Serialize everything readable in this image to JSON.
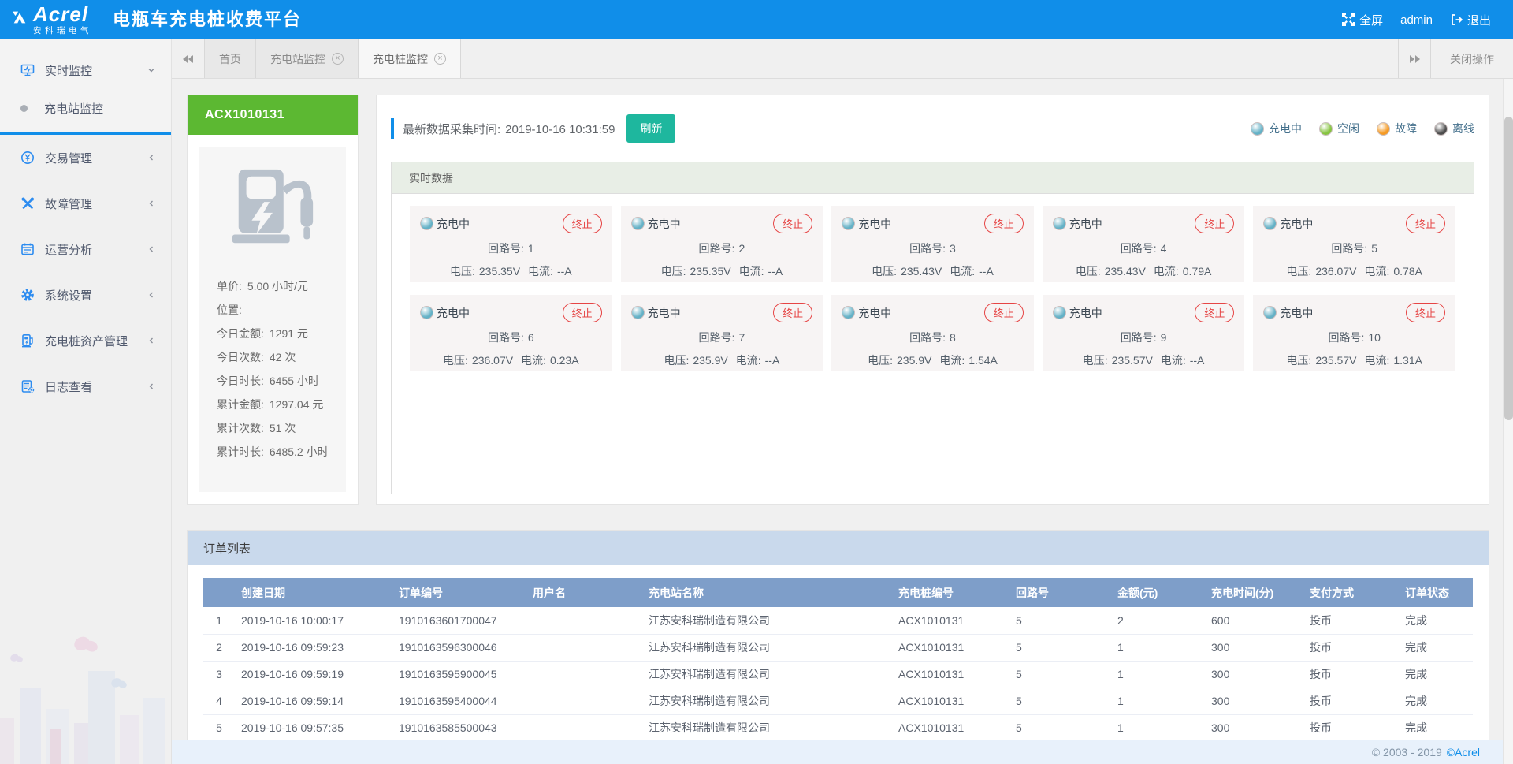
{
  "colors": {
    "header_bg": "#108ee9",
    "accent_blue": "#108ee9",
    "device_header_green": "#5cb832",
    "refresh_teal": "#1eb79e",
    "terminate_red": "#e64545",
    "charging": "#64b1c6",
    "idle": "#86c440",
    "fault": "#f59a23",
    "offline": "#4d4d4d",
    "table_header_blue": "#7e9ec9",
    "orders_bar_blue": "#c9d9ec"
  },
  "header": {
    "logo_text": "Acrel",
    "logo_sub": "安科瑞电气",
    "app_title": "电瓶车充电桩收费平台",
    "fullscreen_label": "全屏",
    "username": "admin",
    "logout_label": "退出"
  },
  "tabs": {
    "items": [
      {
        "label": "首页"
      },
      {
        "label": "充电站监控"
      },
      {
        "label": "充电桩监控"
      }
    ],
    "close_ops_label": "关闭操作"
  },
  "sidebar": {
    "items": [
      {
        "label": "实时监控",
        "children": [
          {
            "label": "充电站监控"
          }
        ]
      },
      {
        "label": "交易管理"
      },
      {
        "label": "故障管理"
      },
      {
        "label": "运营分析"
      },
      {
        "label": "系统设置"
      },
      {
        "label": "充电桩资产管理"
      },
      {
        "label": "日志查看"
      }
    ]
  },
  "device": {
    "id": "ACX1010131",
    "stats": [
      {
        "label": "单价:",
        "value": "5.00 小时/元"
      },
      {
        "label": "位置:",
        "value": ""
      },
      {
        "label": "今日金额:",
        "value": "1291 元"
      },
      {
        "label": "今日次数:",
        "value": "42 次"
      },
      {
        "label": "今日时长:",
        "value": "6455 小时"
      },
      {
        "label": "累计金额:",
        "value": "1297.04 元"
      },
      {
        "label": "累计次数:",
        "value": "51 次"
      },
      {
        "label": "累计时长:",
        "value": "6485.2 小时"
      }
    ]
  },
  "monitor": {
    "collect_time_label": "最新数据采集时间:",
    "collect_time": "2019-10-16 10:31:59",
    "refresh_label": "刷新",
    "section_title": "实时数据",
    "status_label": "充电中",
    "terminate_label": "终止",
    "circuit_label": "回路号:",
    "voltage_label": "电压:",
    "current_label": "电流:",
    "legend": [
      {
        "label": "充电中",
        "color": "#64b1c6"
      },
      {
        "label": "空闲",
        "color": "#86c440"
      },
      {
        "label": "故障",
        "color": "#f59a23"
      },
      {
        "label": "离线",
        "color": "#4d4d4d"
      }
    ],
    "channels": [
      {
        "circuit": "1",
        "voltage": "235.35V",
        "current": "--A"
      },
      {
        "circuit": "2",
        "voltage": "235.35V",
        "current": "--A"
      },
      {
        "circuit": "3",
        "voltage": "235.43V",
        "current": "--A"
      },
      {
        "circuit": "4",
        "voltage": "235.43V",
        "current": "0.79A"
      },
      {
        "circuit": "5",
        "voltage": "236.07V",
        "current": "0.78A"
      },
      {
        "circuit": "6",
        "voltage": "236.07V",
        "current": "0.23A"
      },
      {
        "circuit": "7",
        "voltage": "235.9V",
        "current": "--A"
      },
      {
        "circuit": "8",
        "voltage": "235.9V",
        "current": "1.54A"
      },
      {
        "circuit": "9",
        "voltage": "235.57V",
        "current": "--A"
      },
      {
        "circuit": "10",
        "voltage": "235.57V",
        "current": "1.31A"
      }
    ]
  },
  "orders": {
    "section_title": "订单列表",
    "columns": [
      "创建日期",
      "订单编号",
      "用户名",
      "充电站名称",
      "充电桩编号",
      "回路号",
      "金额(元)",
      "充电时间(分)",
      "支付方式",
      "订单状态"
    ],
    "rows": [
      [
        "1",
        "2019-10-16 10:00:17",
        "1910163601700047",
        "",
        "江苏安科瑞制造有限公司",
        "ACX1010131",
        "5",
        "2",
        "600",
        "投币",
        "完成"
      ],
      [
        "2",
        "2019-10-16 09:59:23",
        "1910163596300046",
        "",
        "江苏安科瑞制造有限公司",
        "ACX1010131",
        "5",
        "1",
        "300",
        "投币",
        "完成"
      ],
      [
        "3",
        "2019-10-16 09:59:19",
        "1910163595900045",
        "",
        "江苏安科瑞制造有限公司",
        "ACX1010131",
        "5",
        "1",
        "300",
        "投币",
        "完成"
      ],
      [
        "4",
        "2019-10-16 09:59:14",
        "1910163595400044",
        "",
        "江苏安科瑞制造有限公司",
        "ACX1010131",
        "5",
        "1",
        "300",
        "投币",
        "完成"
      ],
      [
        "5",
        "2019-10-16 09:57:35",
        "1910163585500043",
        "",
        "江苏安科瑞制造有限公司",
        "ACX1010131",
        "5",
        "1",
        "300",
        "投币",
        "完成"
      ]
    ]
  },
  "footer": {
    "copyright": "© 2003 - 2019",
    "brand": "©Acrel"
  }
}
